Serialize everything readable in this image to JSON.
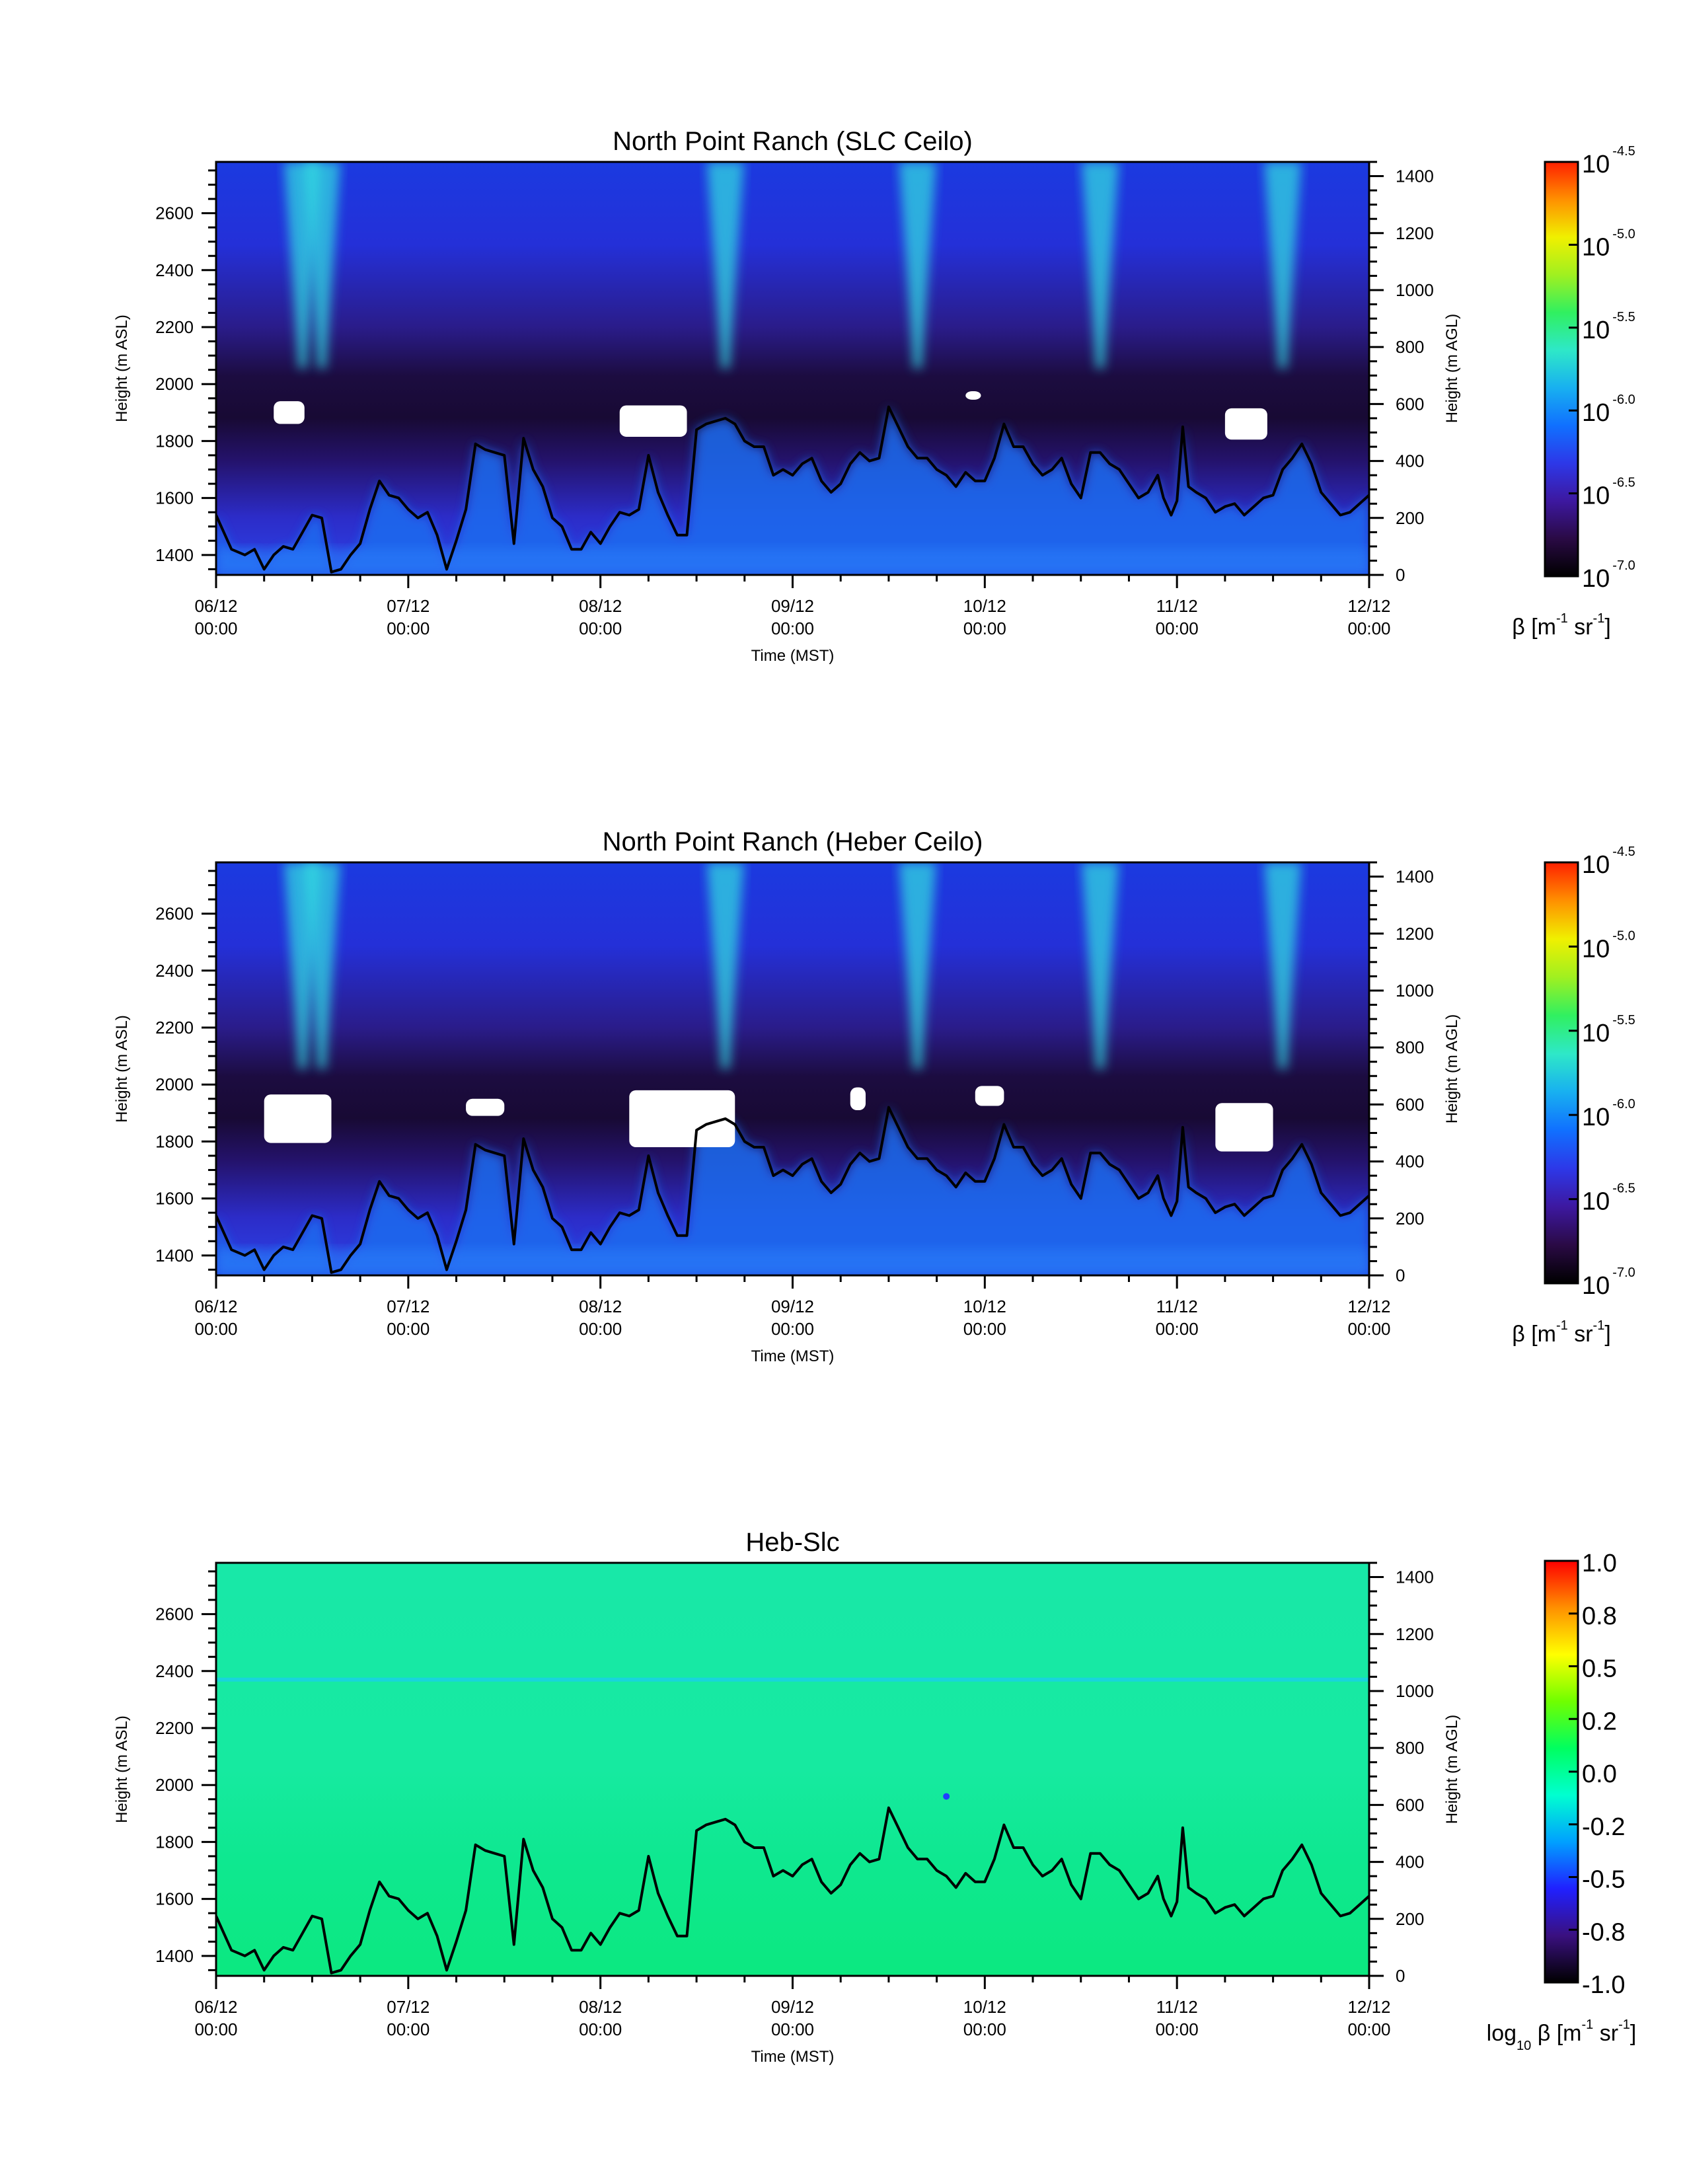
{
  "panels": [
    {
      "title": "North Point Ranch (SLC Ceilo)",
      "field": "beta",
      "colorbar_labels": [
        {
          "mant": "10",
          "exp": "-4.5"
        },
        {
          "mant": "10",
          "exp": "-5.0"
        },
        {
          "mant": "10",
          "exp": "-5.5"
        },
        {
          "mant": "10",
          "exp": "-6.0"
        },
        {
          "mant": "10",
          "exp": "-6.5"
        },
        {
          "mant": "10",
          "exp": "-7.0"
        }
      ],
      "colorbar_title": {
        "prefix": "",
        "sub": "",
        "main": "β [m",
        "e1": "-1",
        "mid": " sr",
        "e2": "-1",
        "end": "]"
      }
    },
    {
      "title": "North Point Ranch (Heber Ceilo)",
      "field": "beta",
      "colorbar_labels": [
        {
          "mant": "10",
          "exp": "-4.5"
        },
        {
          "mant": "10",
          "exp": "-5.0"
        },
        {
          "mant": "10",
          "exp": "-5.5"
        },
        {
          "mant": "10",
          "exp": "-6.0"
        },
        {
          "mant": "10",
          "exp": "-6.5"
        },
        {
          "mant": "10",
          "exp": "-7.0"
        }
      ],
      "colorbar_title": {
        "prefix": "",
        "sub": "",
        "main": "β [m",
        "e1": "-1",
        "mid": " sr",
        "e2": "-1",
        "end": "]"
      }
    },
    {
      "title": "Heb-Slc",
      "field": "diff",
      "colorbar_labels": [
        {
          "mant": "1.0",
          "exp": ""
        },
        {
          "mant": "0.8",
          "exp": ""
        },
        {
          "mant": "0.5",
          "exp": ""
        },
        {
          "mant": "0.2",
          "exp": ""
        },
        {
          "mant": "0.0",
          "exp": ""
        },
        {
          "mant": "-0.2",
          "exp": ""
        },
        {
          "mant": "-0.5",
          "exp": ""
        },
        {
          "mant": "-0.8",
          "exp": ""
        },
        {
          "mant": "-1.0",
          "exp": ""
        }
      ],
      "colorbar_title": {
        "prefix": "log",
        "sub": "10",
        "main": " β [m",
        "e1": "-1",
        "mid": " sr",
        "e2": "-1",
        "end": "]"
      }
    }
  ],
  "axes": {
    "ylabel_left": "Height (m ASL)",
    "ylabel_right": "Height (m AGL)",
    "xlabel": "Time (MST)",
    "left_ticks": [
      "1400",
      "1600",
      "1800",
      "2000",
      "2200",
      "2400",
      "2600"
    ],
    "right_ticks": [
      "0",
      "200",
      "400",
      "600",
      "800",
      "1000",
      "1200",
      "1400"
    ],
    "x_ticks": [
      {
        "date": "06/12",
        "time": "00:00"
      },
      {
        "date": "07/12",
        "time": "00:00"
      },
      {
        "date": "08/12",
        "time": "00:00"
      },
      {
        "date": "09/12",
        "time": "00:00"
      },
      {
        "date": "10/12",
        "time": "00:00"
      },
      {
        "date": "11/12",
        "time": "00:00"
      },
      {
        "date": "12/12",
        "time": "00:00"
      }
    ]
  },
  "chart_data": [
    {
      "type": "heatmap",
      "title": "North Point Ranch (SLC Ceilo)",
      "xlabel": "Time (MST)",
      "ylabel": "Height (m ASL)",
      "ylabel_right": "Height (m AGL)",
      "x_range": [
        "06/12 00:00",
        "12/12 00:00"
      ],
      "ylim": [
        1330,
        2780
      ],
      "ylim_right": [
        0,
        1450
      ],
      "colorbar": {
        "label": "β [m-1 sr-1]",
        "scale": "log10",
        "range": [
          -7.0,
          -4.5
        ]
      },
      "series": [
        {
          "type": "line",
          "description": "mixed layer height overlay (m ASL)"
        }
      ]
    },
    {
      "type": "heatmap",
      "title": "North Point Ranch (Heber Ceilo)",
      "xlabel": "Time (MST)",
      "ylabel": "Height (m ASL)",
      "ylabel_right": "Height (m AGL)",
      "x_range": [
        "06/12 00:00",
        "12/12 00:00"
      ],
      "ylim": [
        1330,
        2780
      ],
      "ylim_right": [
        0,
        1450
      ],
      "colorbar": {
        "label": "β [m-1 sr-1]",
        "scale": "log10",
        "range": [
          -7.0,
          -4.5
        ]
      }
    },
    {
      "type": "heatmap",
      "title": "Heb-Slc",
      "xlabel": "Time (MST)",
      "ylabel": "Height (m ASL)",
      "ylabel_right": "Height (m AGL)",
      "x_range": [
        "06/12 00:00",
        "12/12 00:00"
      ],
      "ylim": [
        1330,
        2780
      ],
      "ylim_right": [
        0,
        1450
      ],
      "colorbar": {
        "label": "log10 β [m-1 sr-1]",
        "range": [
          -1.0,
          1.0
        ]
      }
    }
  ],
  "mlh_line": {
    "x_days": [
      0,
      0.08,
      0.15,
      0.2,
      0.25,
      0.3,
      0.35,
      0.4,
      0.45,
      0.5,
      0.55,
      0.6,
      0.65,
      0.7,
      0.75,
      0.8,
      0.85,
      0.9,
      0.95,
      1.0,
      1.05,
      1.1,
      1.15,
      1.2,
      1.25,
      1.3,
      1.35,
      1.4,
      1.45,
      1.5,
      1.55,
      1.6,
      1.65,
      1.7,
      1.75,
      1.8,
      1.85,
      1.9,
      1.95,
      2.0,
      2.05,
      2.1,
      2.15,
      2.2,
      2.25,
      2.3,
      2.35,
      2.4,
      2.45,
      2.5,
      2.55,
      2.6,
      2.65,
      2.7,
      2.75,
      2.8,
      2.85,
      2.9,
      2.95,
      3.0,
      3.05,
      3.1,
      3.15,
      3.2,
      3.25,
      3.3,
      3.35,
      3.4,
      3.45,
      3.5,
      3.55,
      3.6,
      3.65,
      3.7,
      3.75,
      3.8,
      3.85,
      3.9,
      3.95,
      4.0,
      4.05,
      4.1,
      4.15,
      4.2,
      4.25,
      4.3,
      4.35,
      4.4,
      4.45,
      4.5,
      4.55,
      4.6,
      4.65,
      4.7,
      4.75,
      4.8,
      4.85,
      4.9,
      4.93,
      4.97,
      5.0,
      5.03,
      5.06,
      5.1,
      5.15,
      5.2,
      5.25,
      5.3,
      5.35,
      5.4,
      5.45,
      5.5,
      5.55,
      5.6,
      5.65,
      5.7,
      5.75,
      5.8,
      5.85,
      5.9,
      5.95,
      6.0
    ],
    "height_m_asl": [
      1540,
      1420,
      1400,
      1420,
      1350,
      1400,
      1430,
      1420,
      1480,
      1540,
      1530,
      1340,
      1350,
      1400,
      1440,
      1560,
      1660,
      1610,
      1600,
      1560,
      1530,
      1550,
      1470,
      1350,
      1450,
      1560,
      1790,
      1770,
      1760,
      1750,
      1440,
      1810,
      1700,
      1640,
      1530,
      1500,
      1420,
      1420,
      1480,
      1440,
      1500,
      1550,
      1540,
      1560,
      1750,
      1620,
      1540,
      1470,
      1470,
      1840,
      1860,
      1870,
      1880,
      1860,
      1800,
      1780,
      1780,
      1680,
      1700,
      1680,
      1720,
      1740,
      1660,
      1620,
      1650,
      1720,
      1760,
      1730,
      1740,
      1920,
      1850,
      1780,
      1740,
      1740,
      1700,
      1680,
      1640,
      1690,
      1660,
      1660,
      1740,
      1860,
      1780,
      1780,
      1720,
      1680,
      1700,
      1740,
      1650,
      1600,
      1760,
      1760,
      1720,
      1700,
      1650,
      1600,
      1620,
      1680,
      1600,
      1540,
      1590,
      1850,
      1640,
      1620,
      1600,
      1550,
      1570,
      1580,
      1540,
      1570,
      1600,
      1610,
      1700,
      1740,
      1790,
      1720,
      1620,
      1580,
      1540,
      1550,
      1580,
      1610
    ]
  },
  "colormap": {
    "beta_stops": [
      "#000000",
      "#2a0a45",
      "#3d18a0",
      "#2d38e8",
      "#1070ff",
      "#18b0f0",
      "#2ee8c8",
      "#30f060",
      "#a0f020",
      "#f0f000",
      "#ff9000",
      "#ff2000"
    ],
    "diff_stops": [
      "#000000",
      "#3a1080",
      "#2020ff",
      "#00a0ff",
      "#00ffd0",
      "#00ff60",
      "#70ff00",
      "#ffff00",
      "#ff9000",
      "#ff0000"
    ]
  }
}
